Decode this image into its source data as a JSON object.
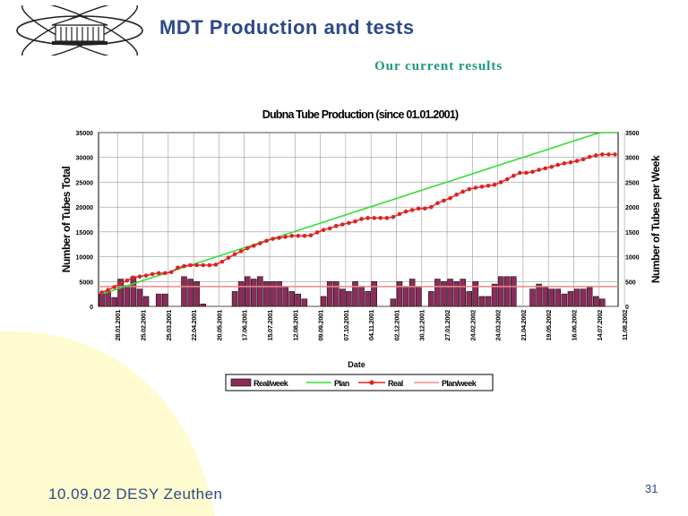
{
  "slide": {
    "title": "MDT Production and tests",
    "subtitle": "Our current results",
    "footer": "10.09.02 DESY Zeuthen",
    "page_number": "31"
  },
  "colors": {
    "title": "#2c4a8a",
    "subtitle": "#1a9a7a",
    "background_curve": "#fffbd0",
    "bar_fill": "#8b2c5a",
    "plan_line": "#33dd33",
    "real_line": "#dd2222",
    "plan_week_line": "#ee8888"
  },
  "chart_data": {
    "type": "bar+line",
    "title": "Dubna Tube Production (since 01.01.2001)",
    "xlabel": "Date",
    "ylabel_left": "Number of Tubes Total",
    "ylabel_right": "Number of Tubes per Week",
    "ylim_left": [
      0,
      35000
    ],
    "ylim_right": [
      0,
      3500
    ],
    "left_ticks": [
      "0",
      "5000",
      "10000",
      "15000",
      "20000",
      "25000",
      "30000",
      "35000"
    ],
    "right_ticks": [
      "0",
      "500",
      "1000",
      "1500",
      "2000",
      "2500",
      "3000",
      "3500"
    ],
    "x_ticks": [
      "28.01.2001",
      "25.02.2001",
      "25.03.2001",
      "22.04.2001",
      "20.05.2001",
      "17.06.2001",
      "15.07.2001",
      "12.08.2001",
      "09.09.2001",
      "07.10.2001",
      "04.11.2001",
      "02.12.2001",
      "30.12.2001",
      "27.01.2002",
      "24.02.2002",
      "24.03.2002",
      "21.04.2002",
      "19.05.2002",
      "16.06.2002",
      "14.07.2002",
      "11.08.2002"
    ],
    "legend": [
      "Real/week",
      "Plan",
      "Real",
      "Plan/week"
    ],
    "legend_position": "bottom",
    "grid": true,
    "weeks": 82,
    "real_per_week": [
      250,
      300,
      180,
      550,
      420,
      600,
      350,
      200,
      0,
      250,
      250,
      0,
      0,
      600,
      550,
      500,
      50,
      0,
      0,
      0,
      0,
      300,
      500,
      600,
      550,
      600,
      500,
      500,
      500,
      400,
      300,
      250,
      150,
      0,
      0,
      200,
      500,
      500,
      350,
      300,
      500,
      400,
      300,
      500,
      0,
      0,
      150,
      500,
      400,
      550,
      400,
      0,
      300,
      550,
      500,
      550,
      500,
      550,
      300,
      500,
      200,
      200,
      450,
      600,
      600,
      600,
      0,
      0,
      350,
      450,
      400,
      350,
      350,
      250,
      300,
      350,
      350,
      380,
      200,
      150,
      0,
      0
    ],
    "real_total": [
      2800,
      3300,
      3900,
      4600,
      5200,
      5800,
      6000,
      6200,
      6500,
      6700,
      6700,
      6900,
      7800,
      8100,
      8300,
      8300,
      8300,
      8300,
      8400,
      9000,
      9800,
      10500,
      11100,
      11700,
      12200,
      12700,
      13200,
      13600,
      13800,
      14000,
      14200,
      14200,
      14200,
      14300,
      14900,
      15400,
      15700,
      16200,
      16500,
      16800,
      17100,
      17600,
      17800,
      17800,
      17800,
      17800,
      18000,
      18600,
      19100,
      19400,
      19700,
      19700,
      20000,
      20800,
      21300,
      21800,
      22500,
      23100,
      23600,
      23900,
      24100,
      24300,
      24500,
      25000,
      25600,
      26300,
      26900,
      26900,
      27100,
      27500,
      27800,
      28100,
      28500,
      28800,
      29000,
      29300,
      29600,
      30100,
      30400,
      30600,
      30600,
      30600
    ],
    "plan_total_range": [
      2500,
      36000
    ],
    "plan_per_week": 400
  }
}
